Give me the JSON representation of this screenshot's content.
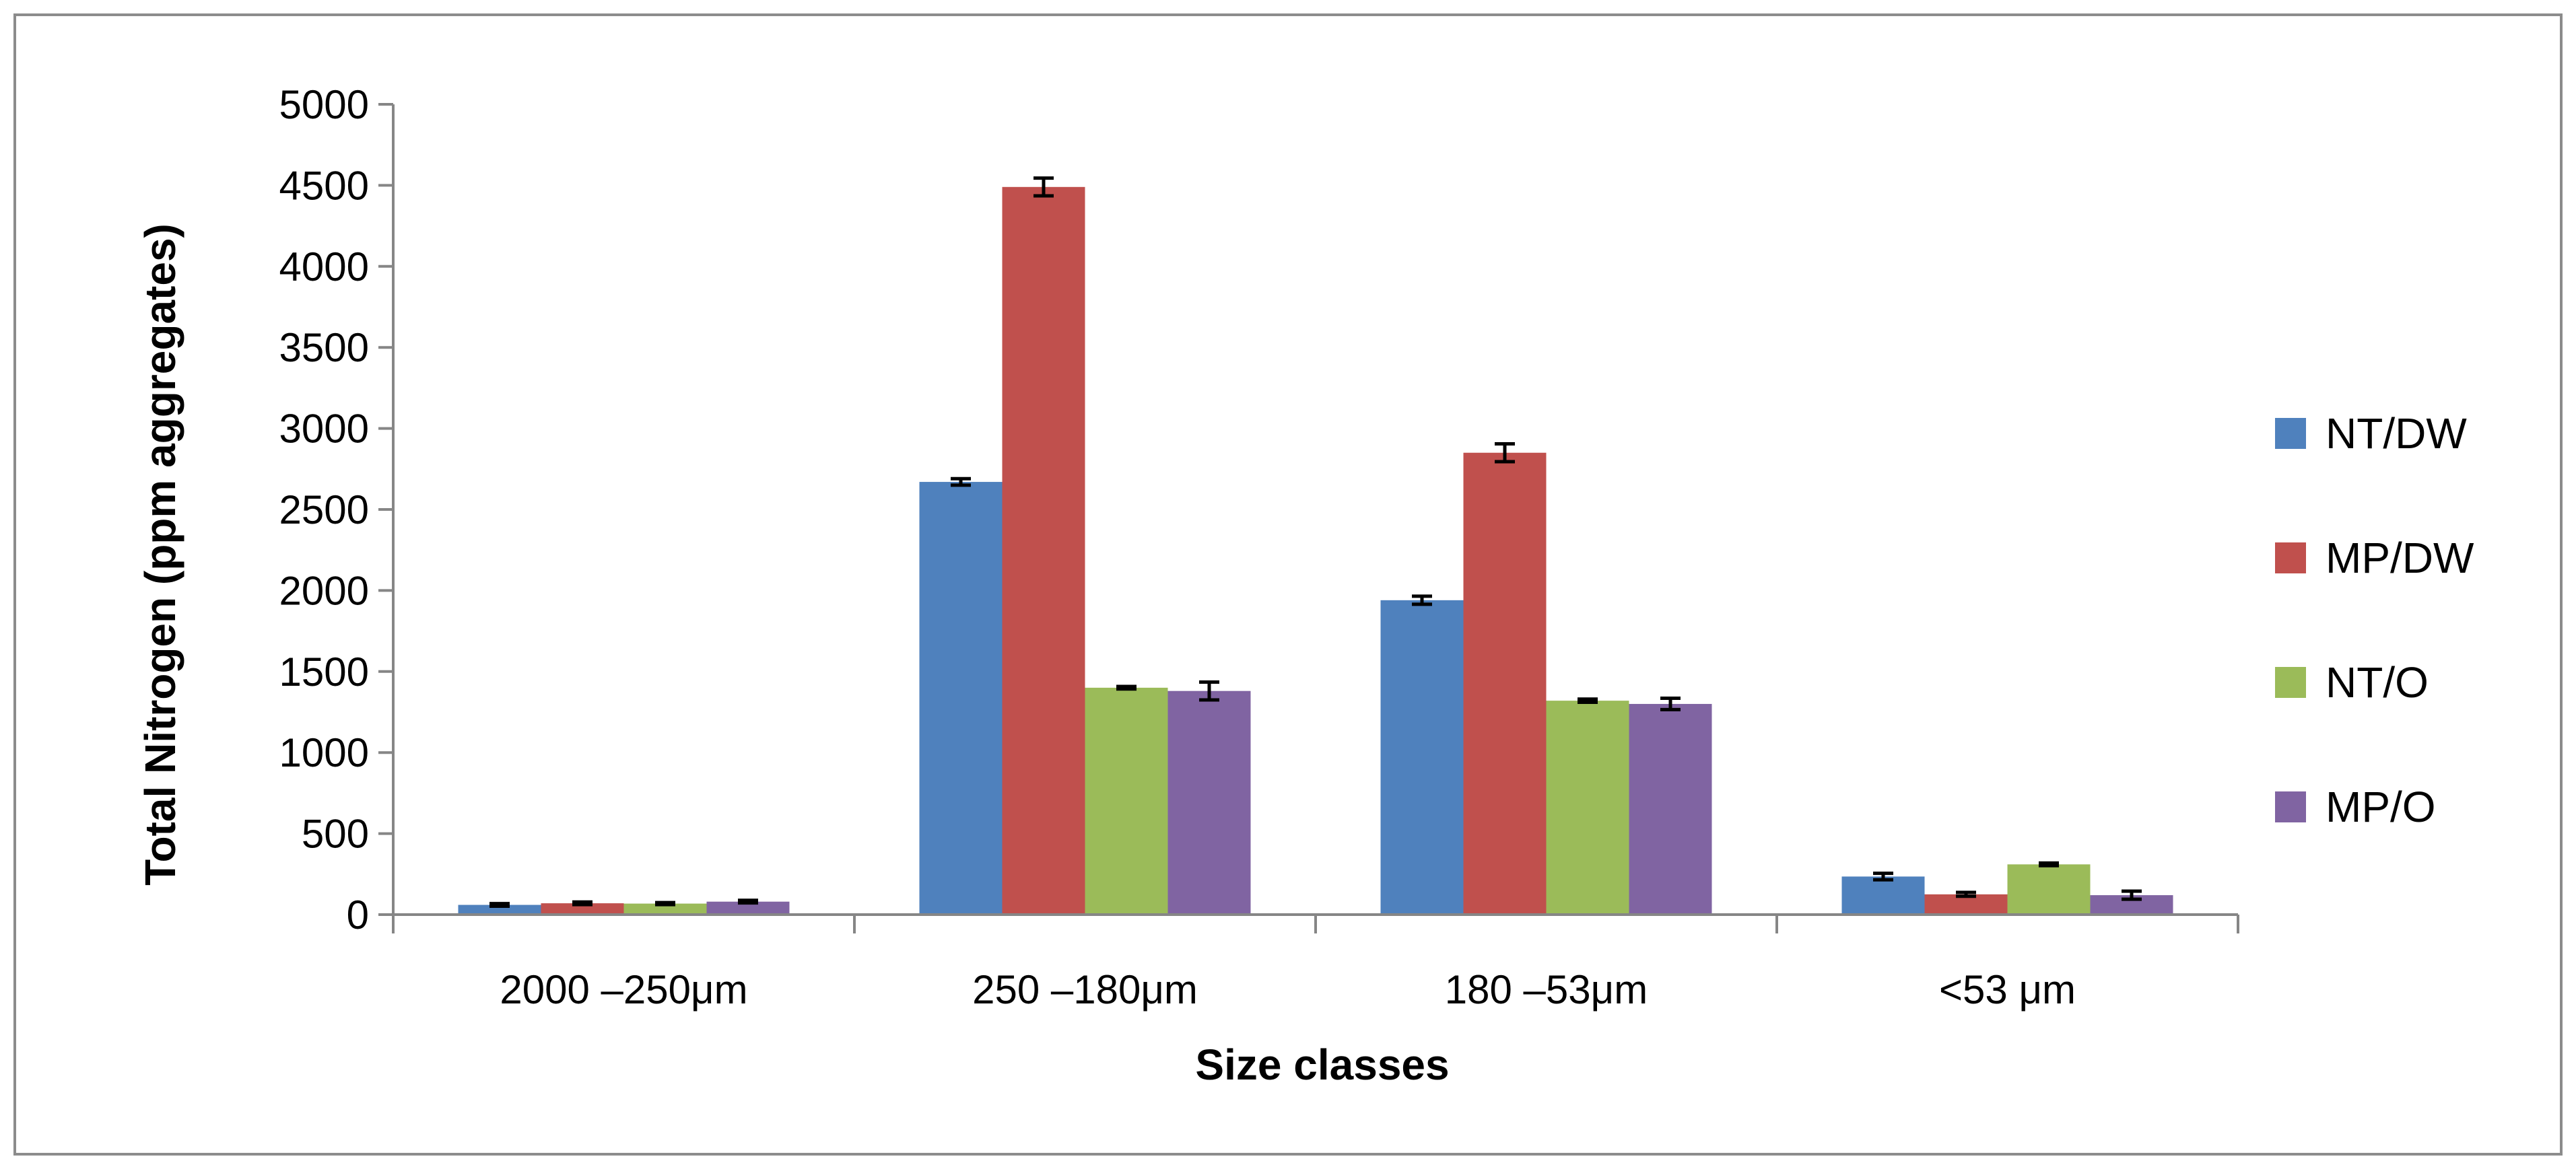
{
  "chart_data": {
    "type": "bar",
    "title": "",
    "xlabel": "Size classes",
    "ylabel": "Total Nitrogen (ppm aggregates)",
    "ylim": [
      0,
      5000
    ],
    "yticks": [
      0,
      500,
      1000,
      1500,
      2000,
      2500,
      3000,
      3500,
      4000,
      4500,
      5000
    ],
    "grid": false,
    "legend_position": "right",
    "categories": [
      "2000 –250μm",
      "250 –180μm",
      "180 –53μm",
      "<53 μm"
    ],
    "series": [
      {
        "name": "NT/DW",
        "color": "#4f81bd",
        "values": [
          60,
          2670,
          1940,
          235
        ],
        "errors": [
          8,
          20,
          25,
          20
        ]
      },
      {
        "name": "MP/DW",
        "color": "#c0504d",
        "values": [
          70,
          4490,
          2850,
          125
        ],
        "errors": [
          8,
          55,
          55,
          12
        ]
      },
      {
        "name": "NT/O",
        "color": "#9bbb59",
        "values": [
          68,
          1400,
          1320,
          310
        ],
        "errors": [
          6,
          8,
          10,
          8
        ]
      },
      {
        "name": "MP/O",
        "color": "#8064a2",
        "values": [
          80,
          1380,
          1300,
          120
        ],
        "errors": [
          8,
          55,
          35,
          25
        ]
      }
    ]
  }
}
